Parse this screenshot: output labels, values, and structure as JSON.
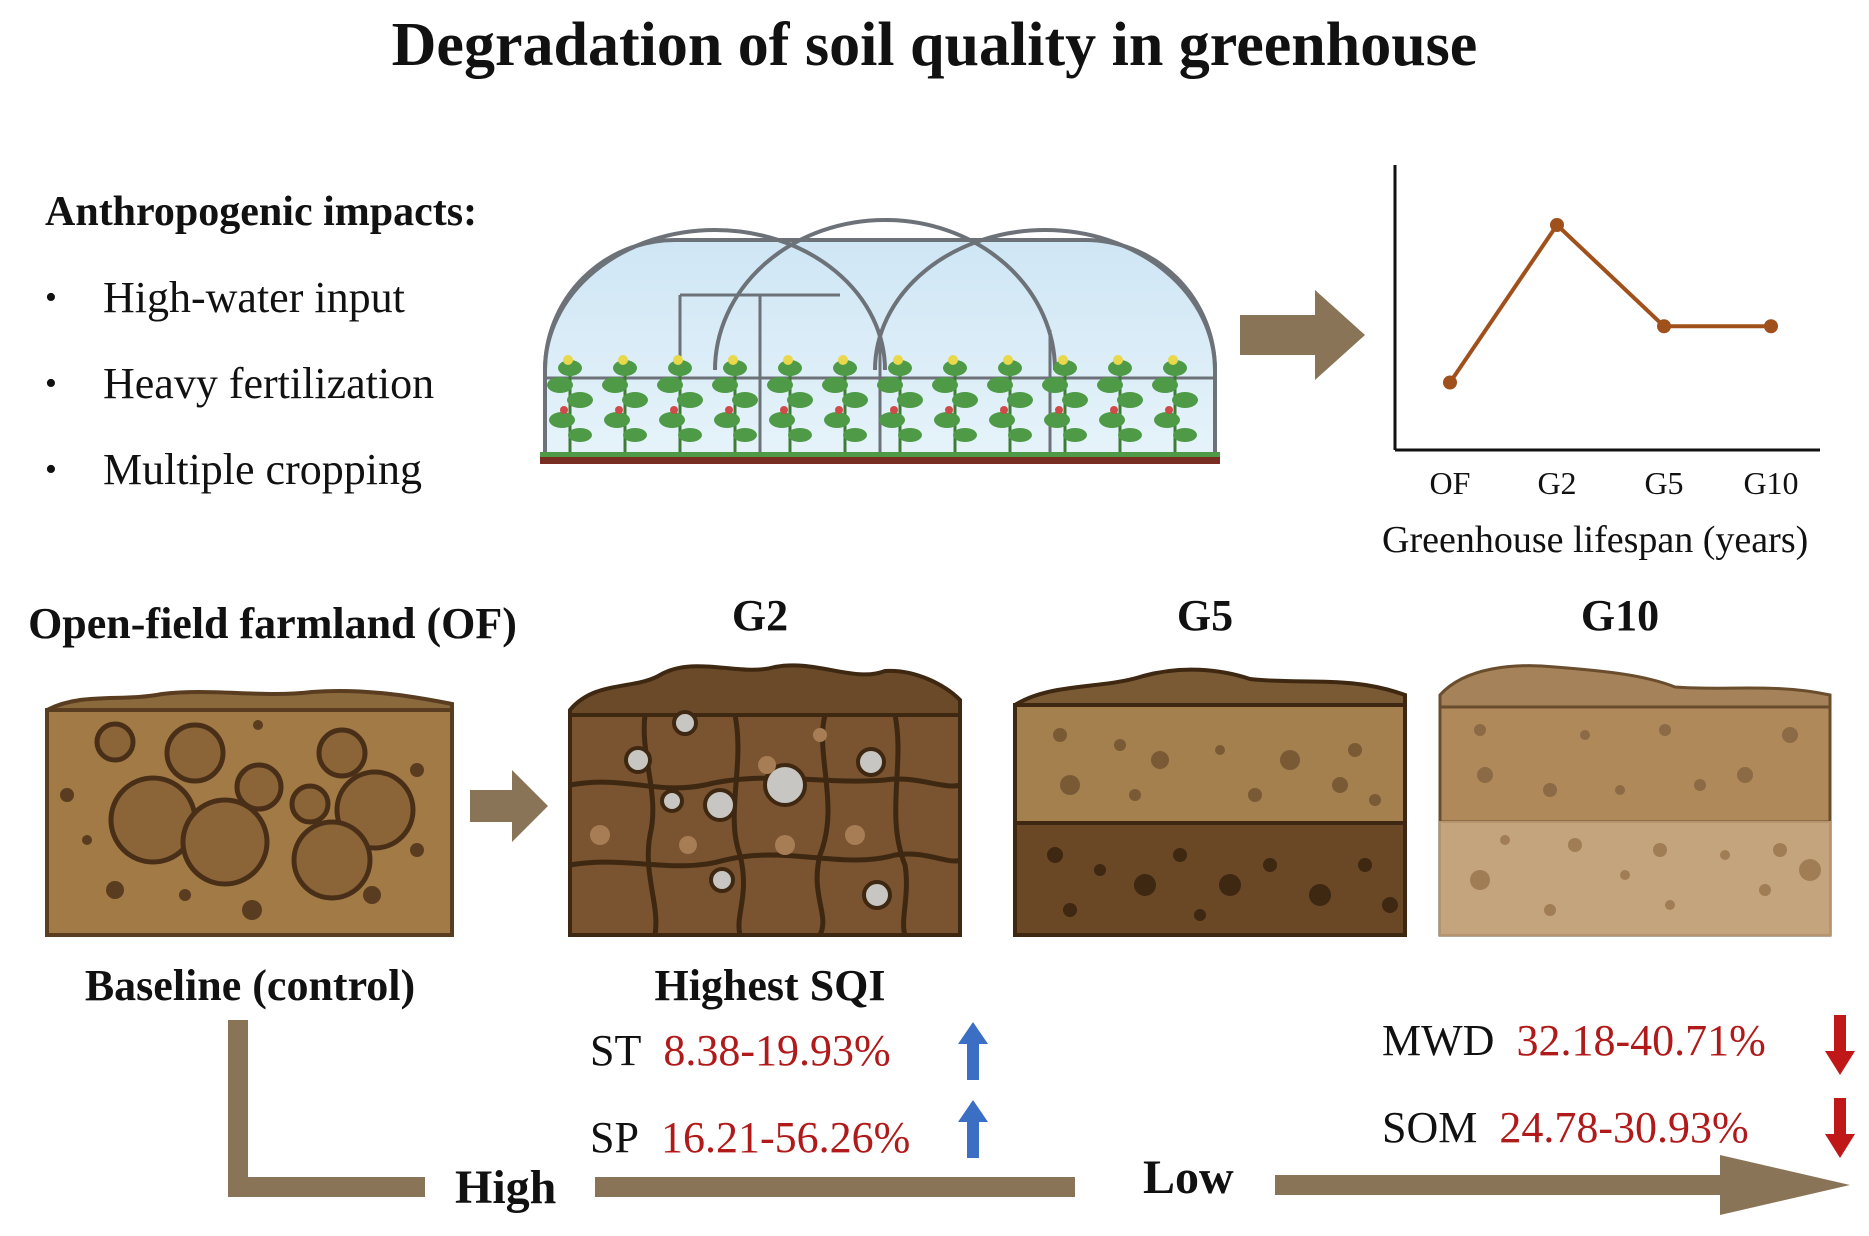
{
  "title": "Degradation of soil quality in greenhouse",
  "impacts": {
    "heading": "Anthropogenic impacts:",
    "items": [
      "High-water input",
      "Heavy fertilization",
      "Multiple cropping"
    ]
  },
  "chart_data": {
    "type": "line",
    "categories": [
      "OF",
      "G2",
      "G5",
      "G10"
    ],
    "values": [
      3,
      10,
      5.5,
      5.5
    ],
    "ylim": [
      0,
      12
    ],
    "xlabel": "Greenhouse lifespan (years)",
    "ylabel": "",
    "line_color": "#a0501a",
    "grid": false
  },
  "stages": [
    {
      "name": "Open-field farmland (OF)",
      "caption": "Baseline (control)"
    },
    {
      "name": "G2",
      "caption": "Highest SQI"
    },
    {
      "name": "G5",
      "caption": ""
    },
    {
      "name": "G10",
      "caption": ""
    }
  ],
  "increases": [
    {
      "metric": "ST",
      "value": "8.38-19.93%",
      "direction": "up"
    },
    {
      "metric": "SP",
      "value": "16.21-56.26%",
      "direction": "up"
    }
  ],
  "decreases": [
    {
      "metric": "MWD",
      "value": "32.18-40.71%",
      "direction": "down"
    },
    {
      "metric": "SOM",
      "value": "24.78-30.93%",
      "direction": "down"
    }
  ],
  "flow": {
    "high_label": "High",
    "low_label": "Low"
  },
  "colors": {
    "arrow": "#8a7458",
    "up": "#3a6fc4",
    "down": "#c01818",
    "value_text": "#b01a1a"
  }
}
